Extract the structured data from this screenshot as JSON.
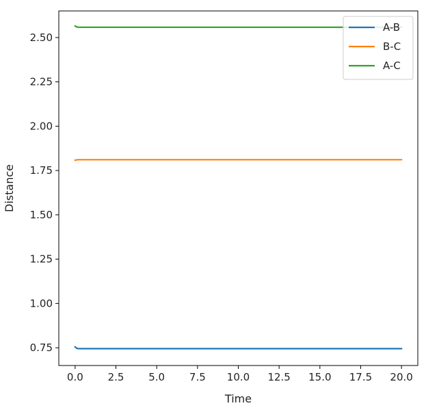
{
  "chart_data": {
    "type": "line",
    "xlabel": "Time",
    "ylabel": "Distance",
    "xlim": [
      -1.0,
      21.0
    ],
    "ylim": [
      0.65,
      2.65
    ],
    "x_ticks": [
      0.0,
      2.5,
      5.0,
      7.5,
      10.0,
      12.5,
      15.0,
      17.5,
      20.0
    ],
    "x_tick_labels": [
      "0.0",
      "2.5",
      "5.0",
      "7.5",
      "10.0",
      "12.5",
      "15.0",
      "17.5",
      "20.0"
    ],
    "y_ticks": [
      0.75,
      1.0,
      1.25,
      1.5,
      1.75,
      2.0,
      2.25,
      2.5
    ],
    "y_tick_labels": [
      "0.75",
      "1.00",
      "1.25",
      "1.50",
      "1.75",
      "2.00",
      "2.25",
      "2.50"
    ],
    "grid": false,
    "legend_position": "top-right",
    "x": [
      0.0,
      0.1,
      0.2,
      0.5,
      1.0,
      2.5,
      5.0,
      7.5,
      10.0,
      12.5,
      15.0,
      17.5,
      20.0
    ],
    "series": [
      {
        "name": "A-B",
        "color": "#1f77b4",
        "values": [
          0.755,
          0.747,
          0.745,
          0.745,
          0.745,
          0.745,
          0.745,
          0.745,
          0.745,
          0.745,
          0.745,
          0.745,
          0.745
        ]
      },
      {
        "name": "B-C",
        "color": "#ff7f0e",
        "values": [
          1.808,
          1.81,
          1.811,
          1.811,
          1.811,
          1.811,
          1.811,
          1.811,
          1.811,
          1.811,
          1.811,
          1.811,
          1.811
        ]
      },
      {
        "name": "A-C",
        "color": "#2ca02c",
        "values": [
          2.565,
          2.56,
          2.558,
          2.558,
          2.558,
          2.558,
          2.558,
          2.558,
          2.558,
          2.558,
          2.558,
          2.558,
          2.558
        ]
      }
    ]
  }
}
